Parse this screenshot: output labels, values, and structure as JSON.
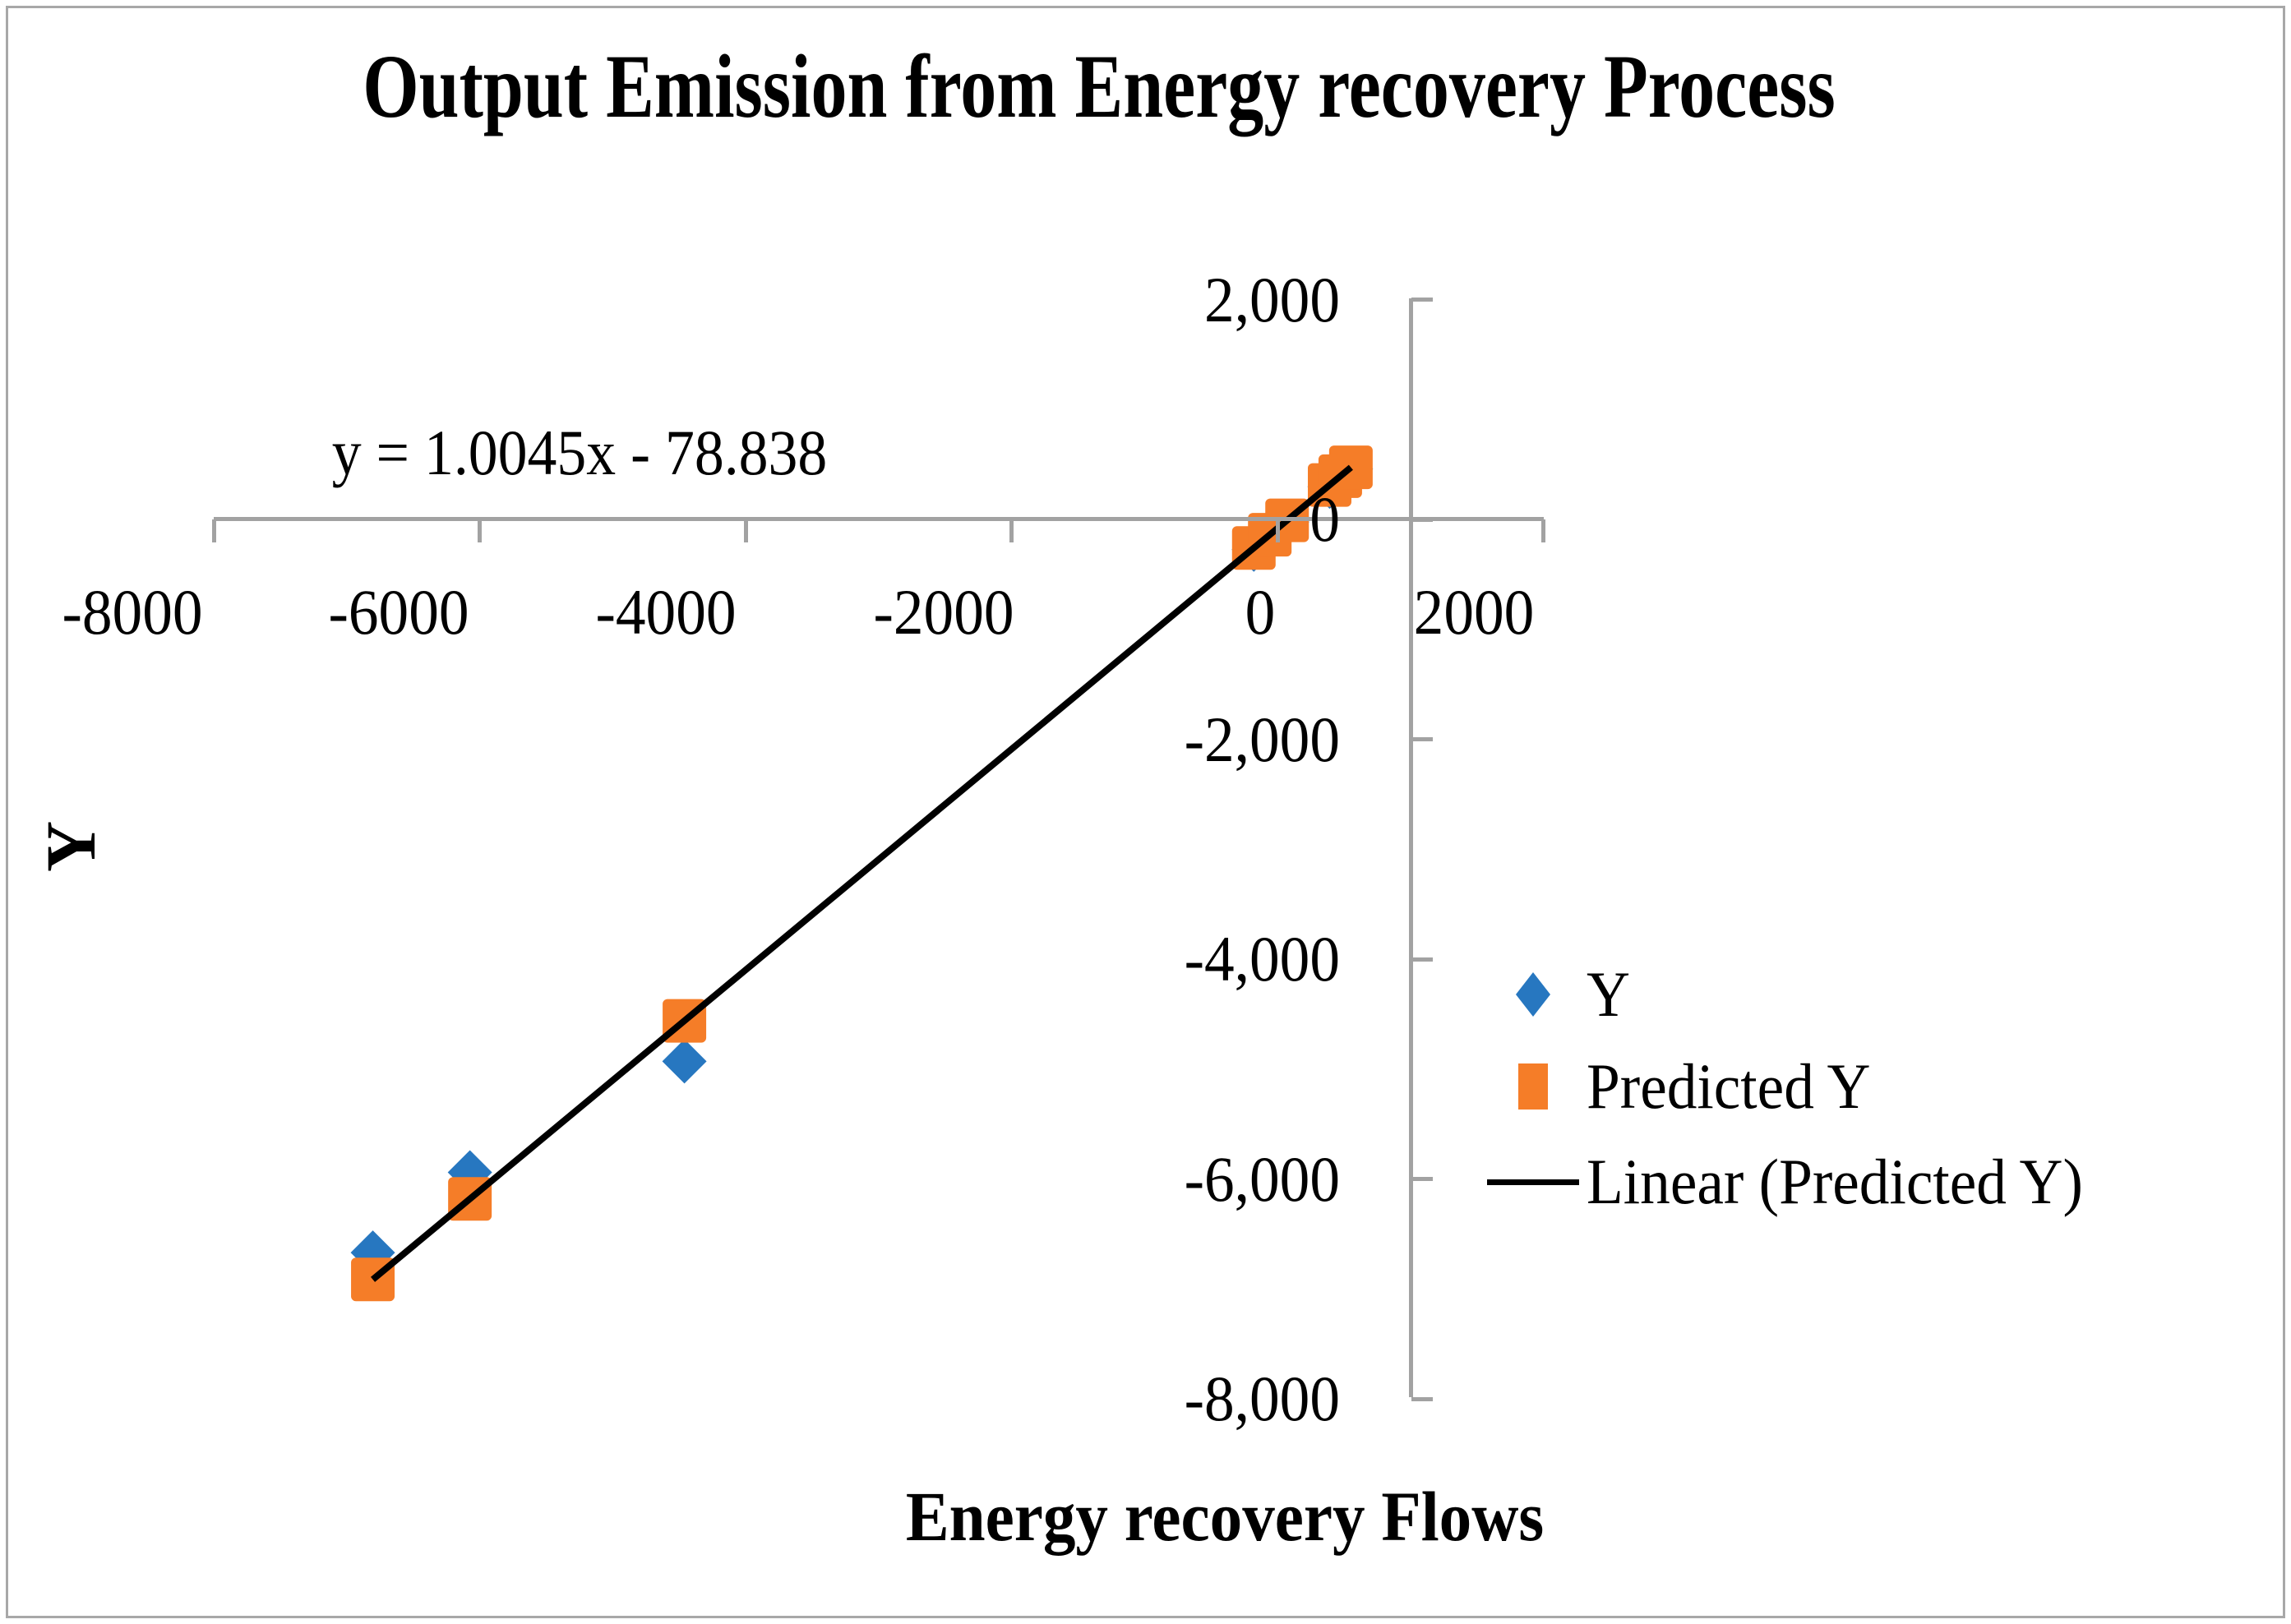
{
  "title": "Output Emission from Energy recovery Process",
  "equation_label": "y = 1.0045x - 78.838",
  "x_axis": {
    "title": "Energy recovery Flows",
    "tick_labels": [
      "-8000",
      "-6000",
      "-4000",
      "-2000",
      "0",
      "2000"
    ],
    "tick_values": [
      -8000,
      -6000,
      -4000,
      -2000,
      0,
      2000
    ]
  },
  "y_axis": {
    "title": "Y",
    "tick_labels": [
      "2,000",
      "0",
      "-2,000",
      "-4,000",
      "-6,000",
      "-8,000"
    ],
    "tick_values": [
      2000,
      0,
      -2000,
      -4000,
      -6000,
      -8000
    ]
  },
  "legend": {
    "items": [
      {
        "label": "Y",
        "marker": "diamond",
        "color": "#2777C0"
      },
      {
        "label": "Predicted Y",
        "marker": "square",
        "color": "#F57D28"
      },
      {
        "label": "Linear (Predicted Y)",
        "marker": "line",
        "color": "#000000"
      }
    ]
  },
  "colors": {
    "series_y": "#2777C0",
    "series_predicted": "#F57D28",
    "trendline": "#000000",
    "axis": "#a2a2a2"
  },
  "chart_data": {
    "type": "scatter",
    "title": "Output Emission from Energy recovery Process",
    "xlabel": "Energy recovery Flows",
    "ylabel": "Y",
    "xlim": [
      -8000,
      2000
    ],
    "ylim": [
      -8000,
      2000
    ],
    "x_ticks": [
      -8000,
      -6000,
      -4000,
      -2000,
      0,
      2000
    ],
    "y_ticks": [
      2000,
      0,
      -2000,
      -4000,
      -6000,
      -8000
    ],
    "grid": false,
    "legend_position": "middle-right",
    "values_note": "point coordinates estimated from marker pixel positions",
    "series": [
      {
        "name": "Y",
        "marker": "diamond",
        "color": "#2777C0",
        "points": [
          [
            -6805,
            -6670
          ],
          [
            -6075,
            -5940
          ],
          [
            -4462,
            -4930
          ],
          [
            -180,
            -275
          ],
          [
            -60,
            -154
          ],
          [
            70,
            -23
          ],
          [
            390,
            298
          ],
          [
            470,
            378
          ],
          [
            550,
            459
          ]
        ]
      },
      {
        "name": "Predicted Y",
        "marker": "square",
        "color": "#F57D28",
        "points": [
          [
            -6805,
            -6914
          ],
          [
            -6075,
            -6181
          ],
          [
            -4462,
            -4562
          ],
          [
            -180,
            -260
          ],
          [
            -60,
            -139
          ],
          [
            70,
            -8
          ],
          [
            390,
            313
          ],
          [
            470,
            393
          ],
          [
            550,
            474
          ]
        ]
      }
    ],
    "trendline": {
      "name": "Linear (Predicted Y)",
      "equation": "y = 1.0045x - 78.838",
      "slope": 1.0045,
      "intercept": -78.838,
      "x_range": [
        -6805,
        550
      ],
      "color": "#000000"
    }
  }
}
